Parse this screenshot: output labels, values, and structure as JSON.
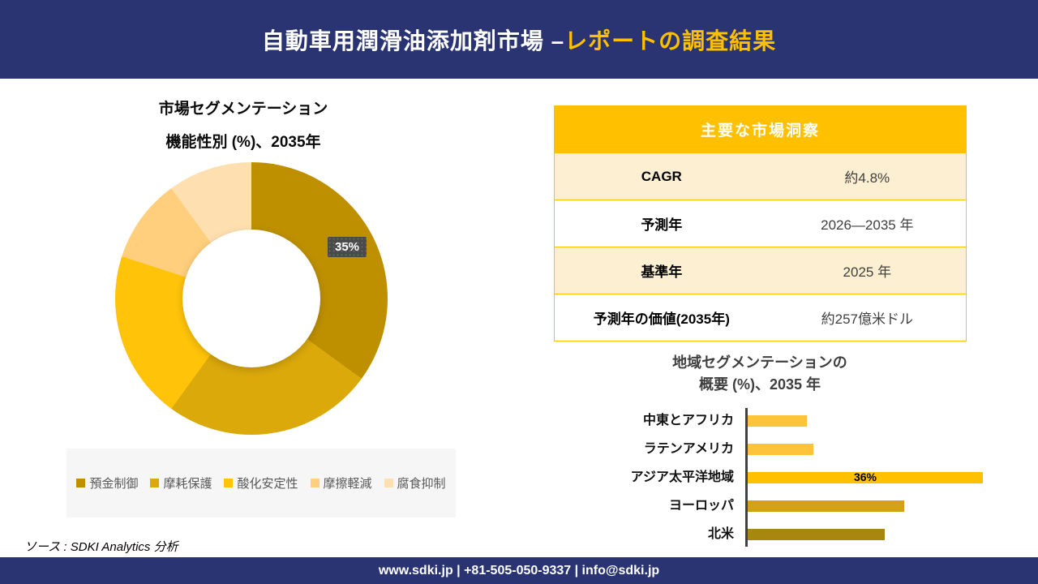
{
  "header": {
    "title_white": "自動車用潤滑油添加剤市場 –",
    "title_accent": "レポートの調査結果",
    "bg_color": "#2A3473",
    "accent_color": "#FFC000"
  },
  "donut_section": {
    "title": "市場セグメンテーション",
    "subtitle": "機能性別 (%)、2035年",
    "callout_label": "35%"
  },
  "insights_table": {
    "header": "主要な市場洞察",
    "rows": [
      {
        "label": "CAGR",
        "value": "約4.8%"
      },
      {
        "label": "予測年",
        "value": "2026—2035 年"
      },
      {
        "label": "基準年",
        "value": "2025 年"
      },
      {
        "label": "予測年の価値(2035年)",
        "value": "約257億米ドル"
      }
    ]
  },
  "bar_section": {
    "title_line1": "地域セグメンテーションの",
    "title_line2": "概要 (%)、2035 年",
    "data_label": "36%"
  },
  "source": {
    "text": "ソース : SDKI Analytics 分析"
  },
  "footer": {
    "text": "www.sdki.jp | +81-505-050-9337 | info@sdki.jp"
  },
  "chart_data": [
    {
      "type": "pie",
      "donut": true,
      "title": "市場セグメンテーション 機能性別 (%)、2035年",
      "categories": [
        "預金制御",
        "摩耗保護",
        "酸化安定性",
        "摩擦軽減",
        "腐食抑制"
      ],
      "values": [
        35,
        25,
        20,
        10,
        10
      ],
      "colors": [
        "#BE9000",
        "#DCA90B",
        "#FFC409",
        "#FFCF7E",
        "#FEE0B0"
      ],
      "data_label": {
        "category": "預金制御",
        "text": "35%"
      },
      "legend_position": "bottom",
      "start_angle_deg": 0
    },
    {
      "type": "bar",
      "orientation": "horizontal",
      "title": "地域セグメンテーションの概要 (%)、2035 年",
      "categories": [
        "中東とアフリカ",
        "ラテンアメリカ",
        "アジア太平洋地域",
        "ヨーロッパ",
        "北米"
      ],
      "values": [
        9,
        10,
        36,
        24,
        21
      ],
      "colors": [
        "#FCC33B",
        "#FCC33B",
        "#FFC000",
        "#D4A017",
        "#A9860D"
      ],
      "data_label": {
        "category": "アジア太平洋地域",
        "text": "36%"
      },
      "xlim": [
        0,
        40
      ],
      "grid": false,
      "legend_position": "none"
    }
  ]
}
